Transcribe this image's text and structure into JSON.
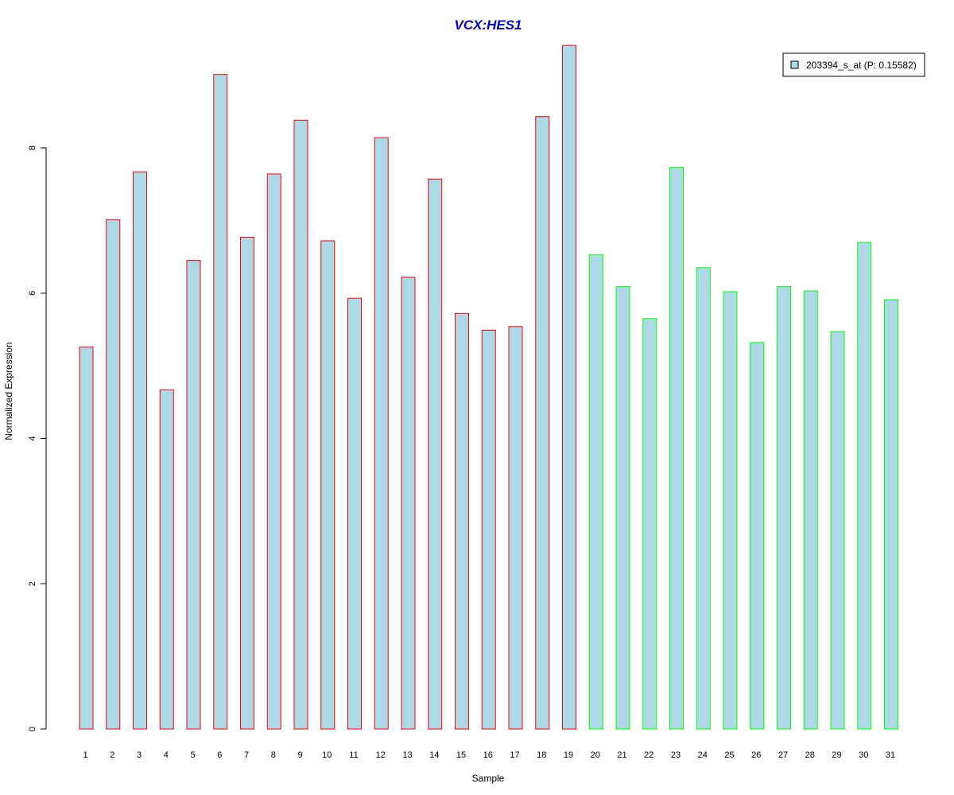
{
  "chart_data": {
    "type": "bar",
    "title": "VCX:HES1",
    "xlabel": "Sample",
    "ylabel": "Normalized Expression",
    "categories": [
      "1",
      "2",
      "3",
      "4",
      "5",
      "6",
      "7",
      "8",
      "9",
      "10",
      "11",
      "12",
      "13",
      "14",
      "15",
      "16",
      "17",
      "18",
      "19",
      "20",
      "21",
      "22",
      "23",
      "24",
      "25",
      "26",
      "27",
      "28",
      "29",
      "30",
      "31"
    ],
    "series": [
      {
        "name": "203394_s_at (P: 0.15582)",
        "values": [
          5.26,
          7.01,
          7.67,
          4.67,
          6.45,
          9.01,
          6.77,
          7.64,
          8.38,
          6.72,
          5.93,
          8.14,
          6.22,
          7.57,
          5.72,
          5.49,
          5.54,
          8.43,
          9.41,
          6.53,
          6.09,
          5.65,
          7.73,
          6.35,
          6.02,
          5.32,
          6.09,
          6.03,
          5.47,
          6.7,
          5.91
        ]
      }
    ],
    "yticks": [
      0,
      2,
      4,
      6,
      8
    ],
    "ylim": [
      0,
      9.41
    ],
    "group_sizes": [
      19,
      12
    ],
    "grid": false,
    "legend_position": "top-right",
    "colors": {
      "bar_fill": "#add8e6",
      "group1_border": "#ff0000",
      "group2_border": "#00ff00",
      "title": "#0000cd",
      "axis": "#000000"
    }
  }
}
